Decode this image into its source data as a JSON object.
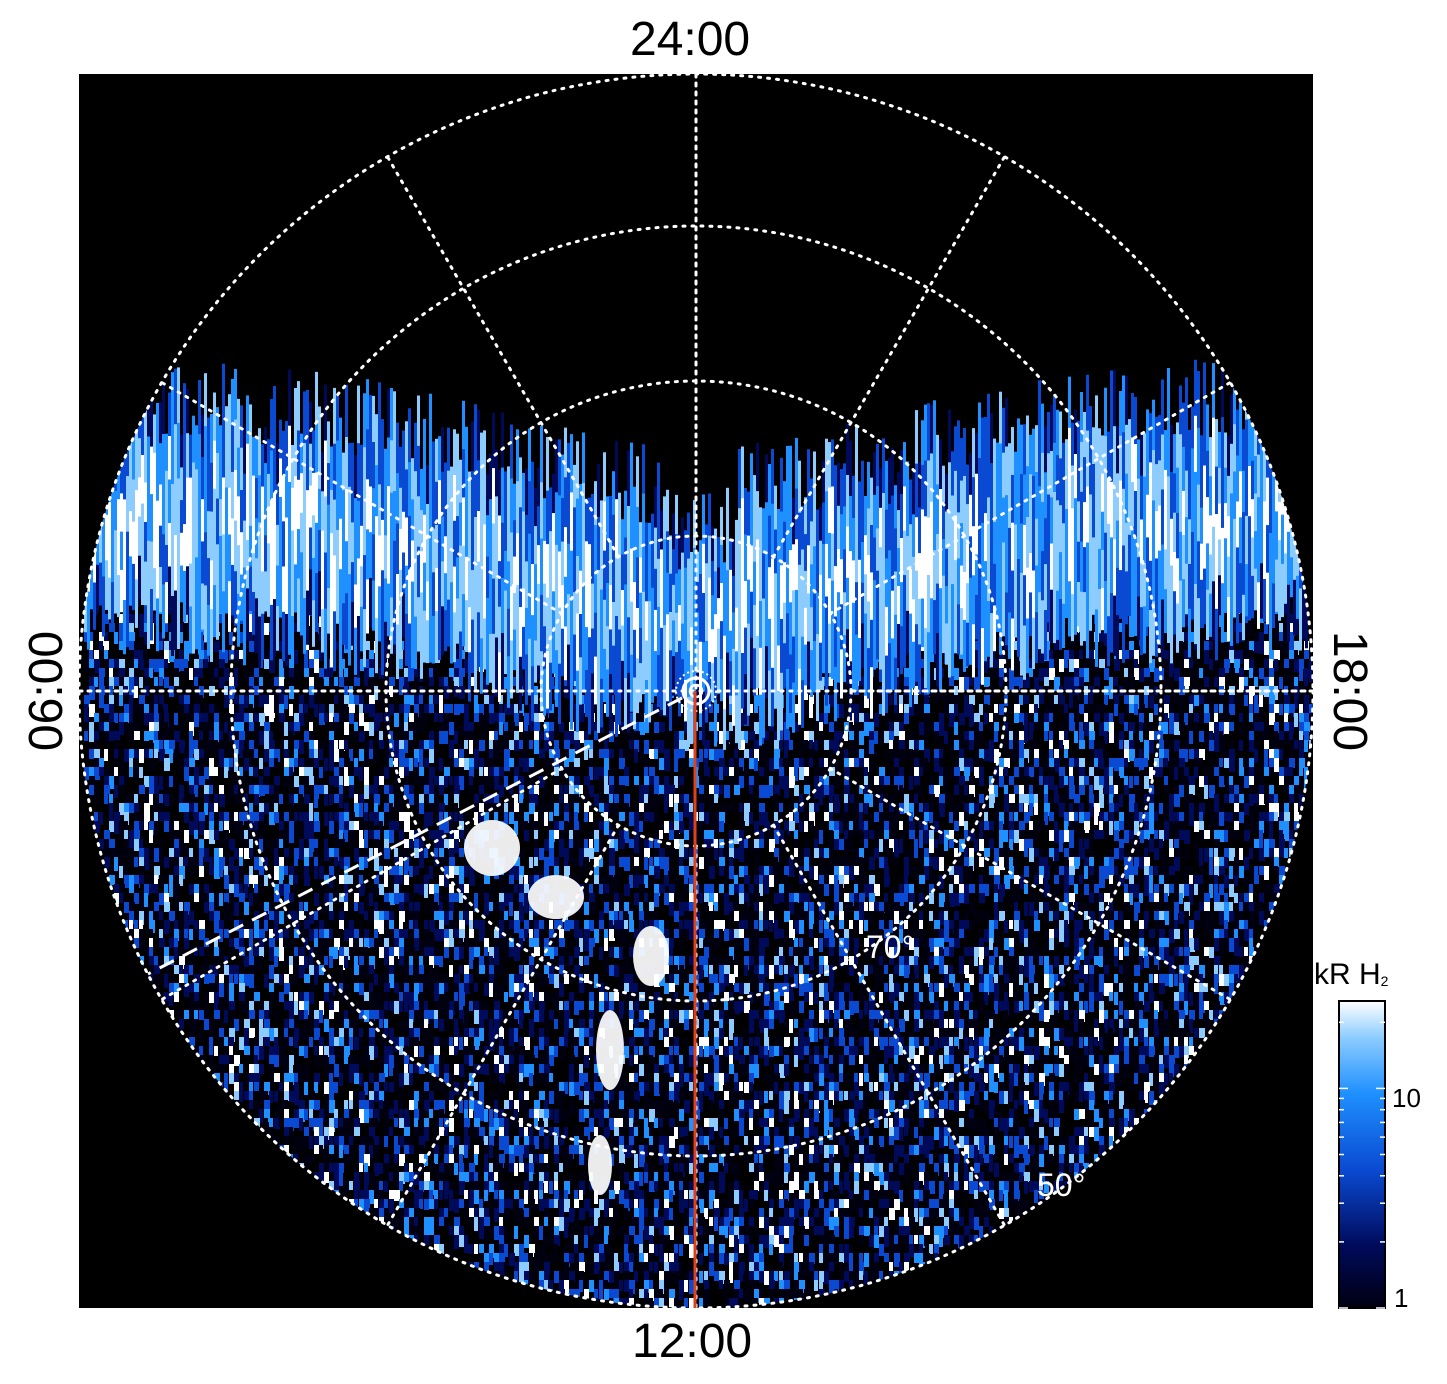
{
  "chart_data": {
    "type": "heatmap",
    "projection": "polar",
    "hemisphere": "south",
    "local_time_labels": {
      "top": "24:00",
      "bottom": "12:00",
      "left": "06:00",
      "right": "18:00"
    },
    "latitude_labels": [
      "70°",
      "50°"
    ],
    "latitude_circles_deg": [
      80,
      70,
      60,
      50
    ],
    "meridian_spacing_hours": 2,
    "grid": "dotted white",
    "background_color": "#000000",
    "reference_meridian": {
      "local_time": "12:00",
      "color": "#e0401a"
    },
    "dashed_meridian_color": "#ffffff",
    "colorbar": {
      "title": "kR H",
      "title_subscript": "2",
      "scale": "log",
      "range": [
        1,
        25
      ],
      "ticks": [
        {
          "value": 1,
          "label": "1"
        },
        {
          "value": 10,
          "label": "10"
        }
      ],
      "colors": [
        "#000010",
        "#000a5a",
        "#0a4ad2",
        "#1f90ff",
        "#8cccff",
        "#ffffff"
      ]
    }
  }
}
